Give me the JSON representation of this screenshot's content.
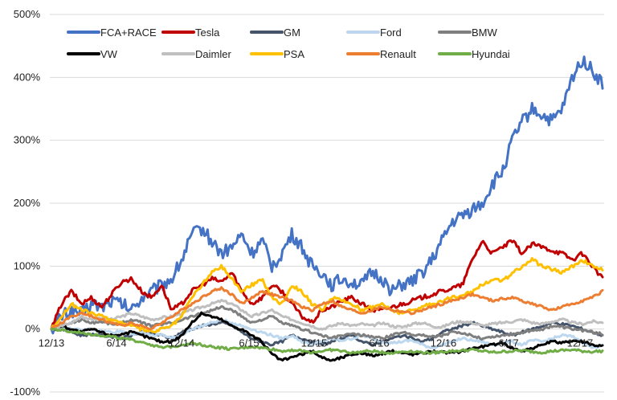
{
  "chart_data": {
    "type": "line",
    "title": "",
    "xlabel": "",
    "ylabel": "",
    "ylim": [
      -100,
      500
    ],
    "y_ticks": [
      -100,
      0,
      100,
      200,
      300,
      400,
      500
    ],
    "y_tick_labels": [
      "-100%",
      "0%",
      "100%",
      "200%",
      "300%",
      "400%",
      "500%"
    ],
    "x_tick_labels": [
      "12/13",
      "6/14",
      "12/14",
      "6/15",
      "12/15",
      "6/16",
      "12/16",
      "6/17",
      "12/17"
    ],
    "legend_position": "top",
    "series": [
      {
        "name": "FCA+RACE",
        "color": "#4472C4",
        "values": [
          0,
          20,
          30,
          25,
          40,
          35,
          45,
          40,
          30,
          50,
          60,
          70,
          80,
          110,
          150,
          160,
          140,
          120,
          130,
          150,
          120,
          140,
          100,
          120,
          150,
          130,
          100,
          90,
          70,
          80,
          75,
          70,
          90,
          80,
          60,
          70,
          75,
          90,
          110,
          140,
          170,
          180,
          190,
          200,
          230,
          250,
          300,
          330,
          350,
          340,
          330,
          350,
          400,
          430,
          410,
          390
        ]
      },
      {
        "name": "Tesla",
        "color": "#C00000",
        "values": [
          0,
          40,
          60,
          40,
          50,
          35,
          55,
          75,
          80,
          60,
          50,
          70,
          30,
          40,
          60,
          70,
          80,
          75,
          90,
          60,
          40,
          50,
          70,
          60,
          40,
          20,
          10,
          30,
          35,
          45,
          50,
          40,
          30,
          30,
          35,
          40,
          45,
          50,
          55,
          60,
          65,
          70,
          110,
          140,
          120,
          130,
          140,
          120,
          135,
          130,
          125,
          120,
          110,
          120,
          100,
          80
        ]
      },
      {
        "name": "GM",
        "color": "#44546A",
        "values": [
          0,
          0,
          -5,
          -10,
          -8,
          -10,
          -12,
          -15,
          -10,
          -5,
          -8,
          -10,
          -15,
          -5,
          0,
          5,
          8,
          10,
          6,
          -5,
          -15,
          -20,
          -25,
          -20,
          -10,
          -15,
          -20,
          -25,
          -20,
          -15,
          -10,
          -20,
          -25,
          -20,
          -15,
          -10,
          -15,
          -20,
          -15,
          -5,
          0,
          5,
          10,
          5,
          0,
          -5,
          -10,
          -5,
          0,
          5,
          10,
          8,
          5,
          0,
          -5,
          -10
        ]
      },
      {
        "name": "Ford",
        "color": "#BDD7EE",
        "values": [
          0,
          2,
          0,
          -2,
          0,
          -3,
          -5,
          -3,
          -8,
          -5,
          -10,
          -8,
          -15,
          -10,
          0,
          5,
          10,
          15,
          10,
          5,
          0,
          -5,
          -10,
          -15,
          -10,
          -20,
          -25,
          -20,
          -15,
          -18,
          -15,
          -10,
          -15,
          -20,
          -22,
          -20,
          -18,
          -25,
          -30,
          -25,
          -20,
          -15,
          -18,
          -20,
          -25,
          -22,
          -20,
          -25,
          -18,
          -20,
          -15,
          -10,
          -12,
          -20,
          -30,
          -25
        ]
      },
      {
        "name": "BMW",
        "color": "#7F7F7F",
        "values": [
          0,
          5,
          10,
          15,
          10,
          12,
          8,
          10,
          15,
          10,
          5,
          8,
          10,
          15,
          20,
          25,
          30,
          35,
          30,
          20,
          10,
          15,
          20,
          10,
          5,
          0,
          -5,
          -10,
          -15,
          -10,
          -8,
          -10,
          -12,
          -15,
          -10,
          -5,
          -8,
          -10,
          -12,
          -10,
          -5,
          -8,
          -10,
          -15,
          -12,
          -10,
          -8,
          -5,
          -2,
          0,
          5,
          3,
          0,
          -2,
          -5,
          -8
        ]
      },
      {
        "name": "VW",
        "color": "#000000",
        "values": [
          0,
          5,
          0,
          -5,
          0,
          -5,
          -10,
          -8,
          -5,
          -10,
          -15,
          -20,
          -20,
          -10,
          10,
          25,
          20,
          15,
          5,
          0,
          -10,
          -20,
          -40,
          -50,
          -45,
          -40,
          -35,
          -45,
          -50,
          -45,
          -40,
          -38,
          -42,
          -40,
          -35,
          -38,
          -40,
          -38,
          -35,
          -37,
          -38,
          -35,
          -30,
          -28,
          -25,
          -22,
          -30,
          -35,
          -30,
          -25,
          -20,
          -22,
          -18,
          -20,
          -25,
          -27
        ]
      },
      {
        "name": "Daimler",
        "color": "#BFBFBF",
        "values": [
          0,
          5,
          10,
          20,
          15,
          18,
          15,
          20,
          25,
          20,
          15,
          18,
          20,
          25,
          30,
          35,
          40,
          45,
          40,
          30,
          20,
          25,
          30,
          20,
          15,
          10,
          5,
          0,
          5,
          10,
          5,
          8,
          5,
          10,
          5,
          3,
          8,
          10,
          5,
          3,
          10,
          12,
          10,
          5,
          8,
          10,
          12,
          15,
          10,
          8,
          12,
          15,
          10,
          8,
          12,
          10
        ]
      },
      {
        "name": "PSA",
        "color": "#FFC000",
        "values": [
          0,
          20,
          40,
          30,
          25,
          20,
          15,
          10,
          5,
          0,
          -5,
          0,
          5,
          20,
          50,
          70,
          90,
          100,
          80,
          60,
          70,
          80,
          50,
          40,
          70,
          60,
          40,
          30,
          50,
          45,
          40,
          30,
          35,
          40,
          30,
          25,
          30,
          35,
          40,
          45,
          50,
          55,
          60,
          70,
          80,
          75,
          90,
          100,
          110,
          100,
          95,
          90,
          100,
          110,
          100,
          95
        ]
      },
      {
        "name": "Renault",
        "color": "#ED7D31",
        "values": [
          0,
          10,
          20,
          25,
          20,
          15,
          10,
          5,
          10,
          5,
          0,
          10,
          20,
          30,
          40,
          50,
          60,
          65,
          55,
          40,
          50,
          60,
          55,
          50,
          45,
          35,
          30,
          40,
          45,
          35,
          30,
          25,
          30,
          35,
          30,
          28,
          25,
          30,
          35,
          40,
          45,
          50,
          55,
          50,
          45,
          48,
          50,
          45,
          40,
          35,
          30,
          35,
          40,
          45,
          50,
          60
        ]
      },
      {
        "name": "Hyundai",
        "color": "#70AD47",
        "values": [
          0,
          -2,
          -5,
          -5,
          -8,
          -10,
          -12,
          -15,
          -18,
          -20,
          -25,
          -30,
          -28,
          -25,
          -22,
          -25,
          -28,
          -30,
          -32,
          -30,
          -28,
          -30,
          -32,
          -35,
          -33,
          -35,
          -37,
          -35,
          -33,
          -35,
          -38,
          -36,
          -35,
          -37,
          -38,
          -36,
          -35,
          -37,
          -38,
          -36,
          -35,
          -34,
          -33,
          -35,
          -37,
          -36,
          -35,
          -34,
          -36,
          -37,
          -35,
          -34,
          -33,
          -35,
          -36,
          -35
        ]
      }
    ]
  }
}
